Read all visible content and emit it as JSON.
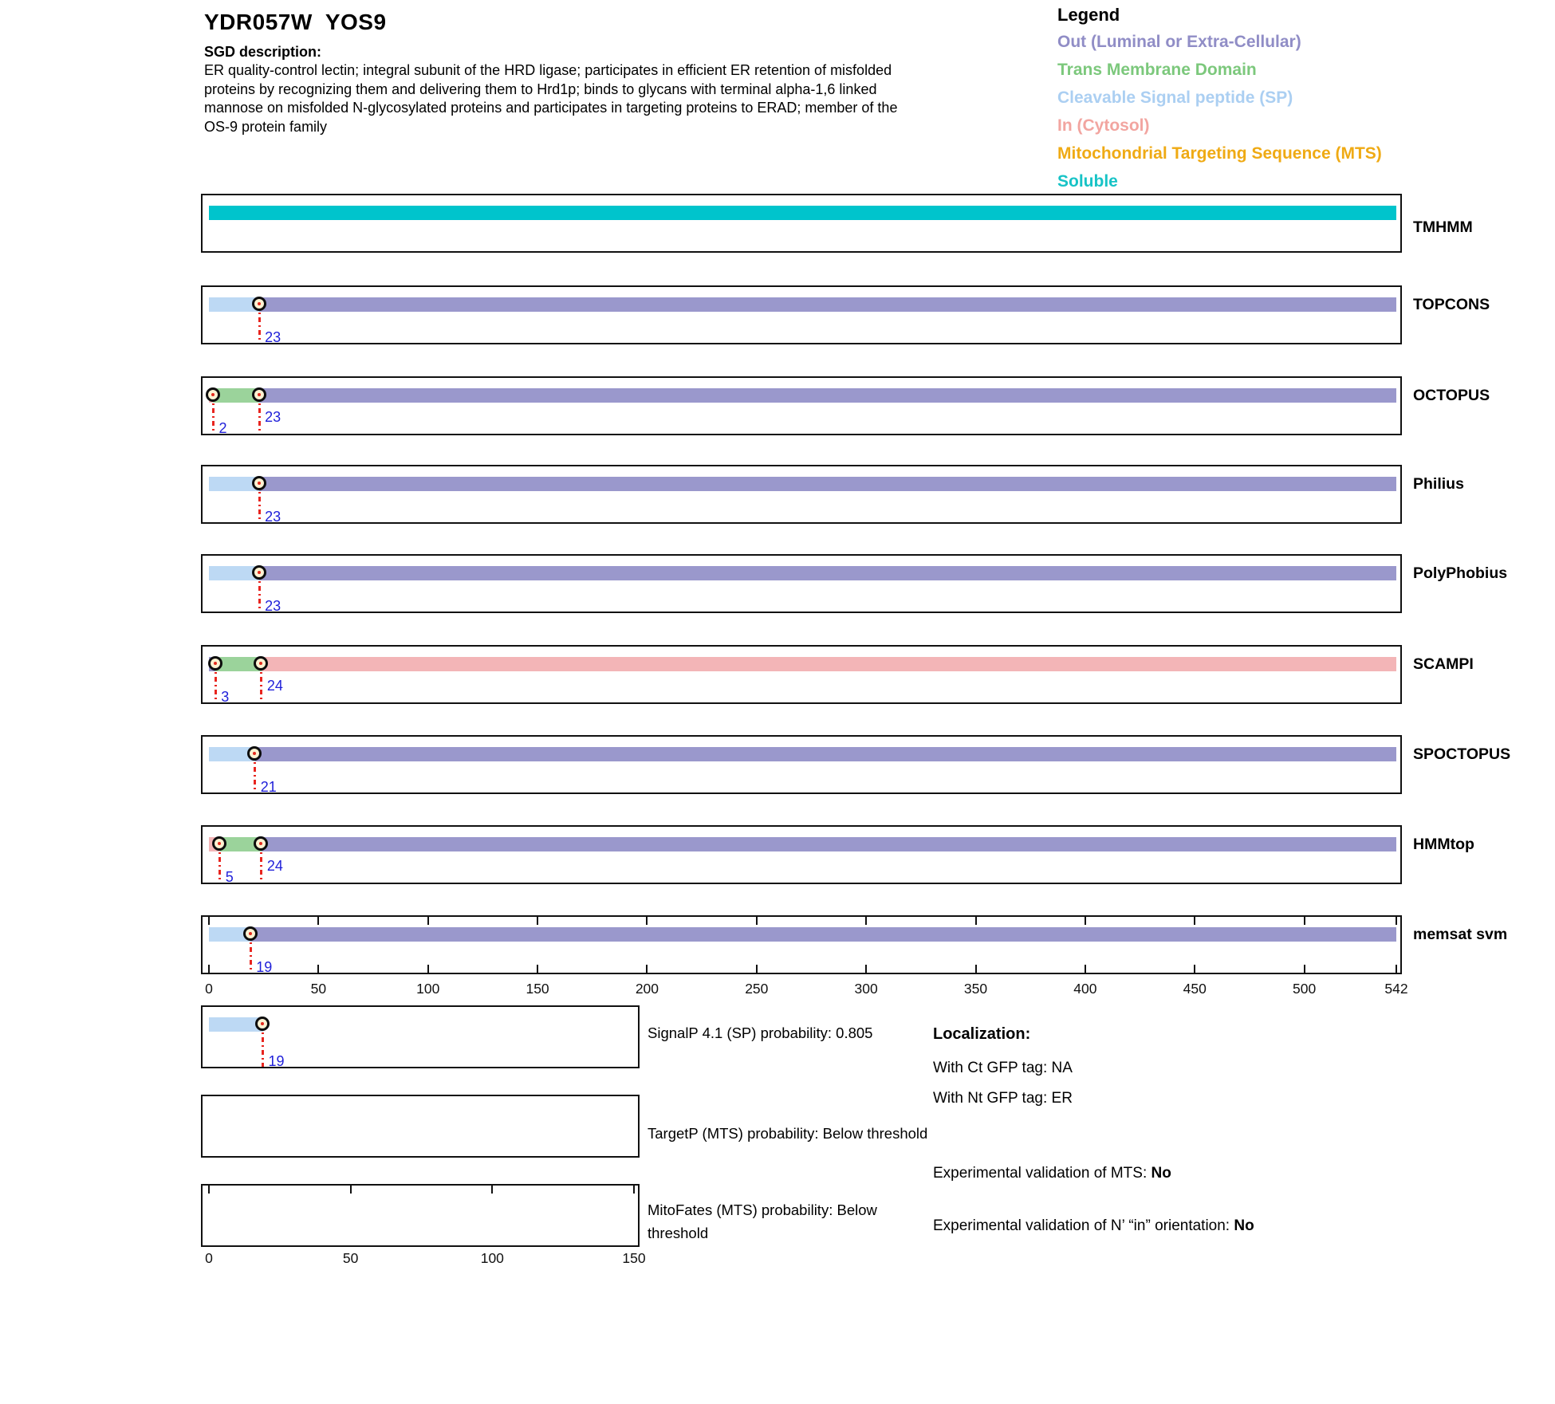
{
  "header": {
    "title": "YDR057W  YOS9",
    "sgd_label": "SGD description:",
    "description": "ER quality-control lectin; integral subunit of the HRD ligase; participates in efficient ER retention of misfolded\nproteins by recognizing them and delivering them to Hrd1p; binds to glycans with terminal alpha-1,6 linked\nmannose on misfolded N-glycosylated proteins and participates in targeting proteins to ERAD; member of the\nOS-9 protein family"
  },
  "legend": {
    "title": "Legend",
    "items": [
      {
        "label": "Out (Luminal or Extra-Cellular)",
        "region": "out"
      },
      {
        "label": "Trans Membrane Domain",
        "region": "tm"
      },
      {
        "label": "Cleavable Signal peptide (SP)",
        "region": "sp"
      },
      {
        "label": "In (Cytosol)",
        "region": "in"
      },
      {
        "label": "Mitochondrial Targeting Sequence (MTS)",
        "region": "mts"
      },
      {
        "label": "Soluble",
        "region": "soluble"
      }
    ]
  },
  "colors": {
    "out": "#9a98cc",
    "tm": "#9bd39b",
    "sp": "#bdd9f4",
    "in": "#f3b5b7",
    "mts": "#f0ab18",
    "soluble": "#00c4cc",
    "legend_out": "#908dc6",
    "legend_tm": "#7cc87c",
    "legend_sp": "#abcff2",
    "legend_in": "#f2a5a0",
    "legend_mts": "#efaa14",
    "legend_soluble": "#17c3c6",
    "marker_fill": "#fcf2d2",
    "marker_dot": "#e42a1d",
    "boundary_line_red": "#e8251f",
    "number_blue": "#1f1fd9"
  },
  "chart_data": {
    "type": "bar",
    "subtype": "protein-topology-span-tracks",
    "title": "Topology predictions for YDR057W YOS9",
    "xlim": [
      0,
      542
    ],
    "x_ticks": [
      0,
      50,
      100,
      150,
      200,
      250,
      300,
      350,
      400,
      450,
      500,
      542
    ],
    "tracks": [
      {
        "name": "TMHMM",
        "segments": [
          {
            "region": "soluble",
            "start": 0,
            "end": 542
          }
        ],
        "markers": []
      },
      {
        "name": "TOPCONS",
        "segments": [
          {
            "region": "sp",
            "start": 0,
            "end": 23
          },
          {
            "region": "out",
            "start": 23,
            "end": 542
          }
        ],
        "markers": [
          23
        ]
      },
      {
        "name": "OCTOPUS",
        "segments": [
          {
            "region": "in",
            "start": 0,
            "end": 2
          },
          {
            "region": "tm",
            "start": 2,
            "end": 23
          },
          {
            "region": "out",
            "start": 23,
            "end": 542
          }
        ],
        "markers": [
          2,
          23
        ]
      },
      {
        "name": "Philius",
        "segments": [
          {
            "region": "sp",
            "start": 0,
            "end": 23
          },
          {
            "region": "out",
            "start": 23,
            "end": 542
          }
        ],
        "markers": [
          23
        ]
      },
      {
        "name": "PolyPhobius",
        "segments": [
          {
            "region": "sp",
            "start": 0,
            "end": 23
          },
          {
            "region": "out",
            "start": 23,
            "end": 542
          }
        ],
        "markers": [
          23
        ]
      },
      {
        "name": "SCAMPI",
        "segments": [
          {
            "region": "out",
            "start": 0,
            "end": 3
          },
          {
            "region": "tm",
            "start": 3,
            "end": 24
          },
          {
            "region": "in",
            "start": 24,
            "end": 542
          }
        ],
        "markers": [
          3,
          24
        ]
      },
      {
        "name": "SPOCTOPUS",
        "segments": [
          {
            "region": "sp",
            "start": 0,
            "end": 21
          },
          {
            "region": "out",
            "start": 21,
            "end": 542
          }
        ],
        "markers": [
          21
        ]
      },
      {
        "name": "HMMtop",
        "segments": [
          {
            "region": "in",
            "start": 0,
            "end": 5
          },
          {
            "region": "tm",
            "start": 5,
            "end": 24
          },
          {
            "region": "out",
            "start": 24,
            "end": 542
          }
        ],
        "markers": [
          5,
          24
        ]
      },
      {
        "name": "memsat svm",
        "segments": [
          {
            "region": "sp",
            "start": 0,
            "end": 19
          },
          {
            "region": "out",
            "start": 19,
            "end": 542
          }
        ],
        "markers": [
          19
        ],
        "axis_ticks": true
      }
    ],
    "xlim2": [
      0,
      150
    ],
    "x_ticks2": [
      0,
      50,
      100,
      150
    ],
    "probability_tracks": [
      {
        "name": "SignalP",
        "caption": "SignalP 4.1 (SP) probability: 0.805",
        "segments": [
          {
            "region": "sp",
            "start": 0,
            "end": 19
          }
        ],
        "markers": [
          19
        ]
      },
      {
        "name": "TargetP",
        "caption": "TargetP (MTS) probability: Below threshold",
        "segments": [],
        "markers": []
      },
      {
        "name": "MitoFates",
        "caption": "MitoFates (MTS) probability: Below\nthreshold",
        "segments": [],
        "markers": [],
        "top_ticks": true
      }
    ]
  },
  "localization": {
    "heading": "Localization:",
    "ct_line": "With Ct GFP tag: NA",
    "nt_line": "With Nt GFP tag: ER",
    "mts_validation": {
      "label": "Experimental validation of MTS: ",
      "value": "No"
    },
    "orientation_validation": {
      "label": "Experimental validation of N’ “in” orientation: ",
      "value": "No"
    }
  }
}
